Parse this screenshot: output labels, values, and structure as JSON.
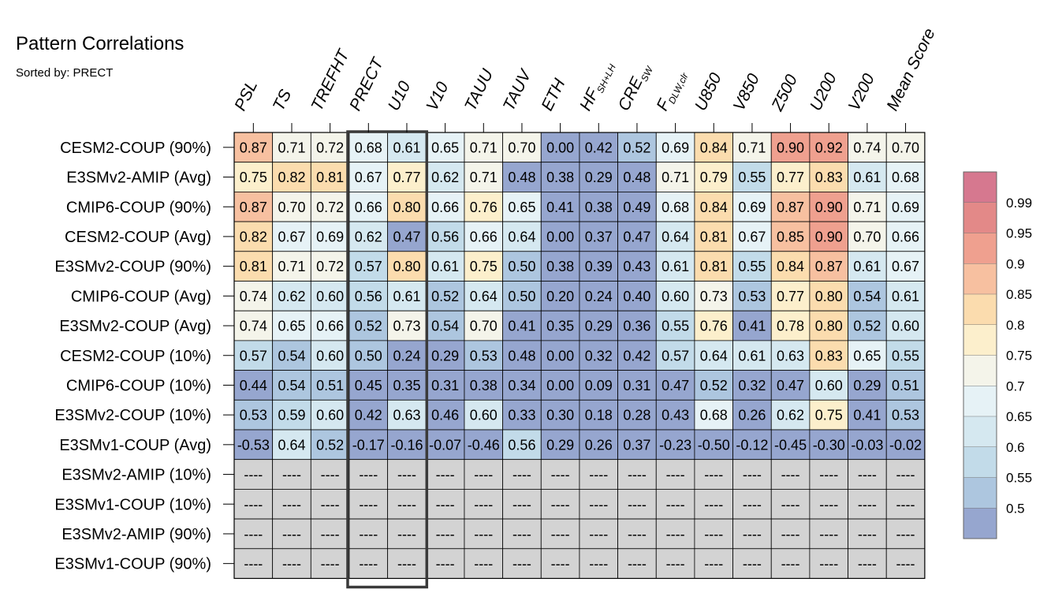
{
  "chart_data": {
    "type": "heatmap",
    "title": "Pattern Correlations",
    "subtitle": "Sorted by: PRECT",
    "highlighted_column": "PRECT",
    "missing_text": "----",
    "columns": [
      {
        "label": "PSL",
        "sub": ""
      },
      {
        "label": "TS",
        "sub": ""
      },
      {
        "label": "TREFHT",
        "sub": ""
      },
      {
        "label": "PRECT",
        "sub": ""
      },
      {
        "label": "U10",
        "sub": ""
      },
      {
        "label": "V10",
        "sub": ""
      },
      {
        "label": "TAUU",
        "sub": ""
      },
      {
        "label": "TAUV",
        "sub": ""
      },
      {
        "label": "ETH",
        "sub": ""
      },
      {
        "label": "HF",
        "sub": "SH+LH"
      },
      {
        "label": "CRE",
        "sub": "SW"
      },
      {
        "label": "F",
        "sub": "DLW,clr"
      },
      {
        "label": "U850",
        "sub": ""
      },
      {
        "label": "V850",
        "sub": ""
      },
      {
        "label": "Z500",
        "sub": ""
      },
      {
        "label": "U200",
        "sub": ""
      },
      {
        "label": "V200",
        "sub": ""
      },
      {
        "label": "Mean Score",
        "sub": ""
      }
    ],
    "rows": [
      {
        "label": "CESM2-COUP (90%)",
        "values": [
          0.87,
          0.71,
          0.72,
          0.68,
          0.61,
          0.65,
          0.71,
          0.7,
          0.0,
          0.42,
          0.52,
          0.69,
          0.84,
          0.71,
          0.9,
          0.92,
          0.74,
          0.7
        ]
      },
      {
        "label": "E3SMv2-AMIP (Avg)",
        "values": [
          0.75,
          0.82,
          0.81,
          0.67,
          0.77,
          0.62,
          0.71,
          0.48,
          0.38,
          0.29,
          0.48,
          0.71,
          0.79,
          0.55,
          0.77,
          0.83,
          0.61,
          0.68
        ]
      },
      {
        "label": "CMIP6-COUP (90%)",
        "values": [
          0.87,
          0.7,
          0.72,
          0.66,
          0.8,
          0.66,
          0.76,
          0.65,
          0.41,
          0.38,
          0.49,
          0.68,
          0.84,
          0.69,
          0.87,
          0.9,
          0.71,
          0.69
        ]
      },
      {
        "label": "CESM2-COUP (Avg)",
        "values": [
          0.82,
          0.67,
          0.69,
          0.62,
          0.47,
          0.56,
          0.66,
          0.64,
          0.0,
          0.37,
          0.47,
          0.64,
          0.81,
          0.67,
          0.85,
          0.9,
          0.7,
          0.66
        ]
      },
      {
        "label": "E3SMv2-COUP (90%)",
        "values": [
          0.81,
          0.71,
          0.72,
          0.57,
          0.8,
          0.61,
          0.75,
          0.5,
          0.38,
          0.39,
          0.43,
          0.61,
          0.81,
          0.55,
          0.84,
          0.87,
          0.61,
          0.67
        ]
      },
      {
        "label": "CMIP6-COUP (Avg)",
        "values": [
          0.74,
          0.62,
          0.6,
          0.56,
          0.61,
          0.52,
          0.64,
          0.5,
          0.2,
          0.24,
          0.4,
          0.6,
          0.73,
          0.53,
          0.77,
          0.8,
          0.54,
          0.61
        ]
      },
      {
        "label": "E3SMv2-COUP (Avg)",
        "values": [
          0.74,
          0.65,
          0.66,
          0.52,
          0.73,
          0.54,
          0.7,
          0.41,
          0.35,
          0.29,
          0.36,
          0.55,
          0.76,
          0.41,
          0.78,
          0.8,
          0.52,
          0.6
        ]
      },
      {
        "label": "CESM2-COUP (10%)",
        "values": [
          0.57,
          0.54,
          0.6,
          0.5,
          0.24,
          0.29,
          0.53,
          0.48,
          0.0,
          0.32,
          0.42,
          0.57,
          0.64,
          0.61,
          0.63,
          0.83,
          0.65,
          0.55
        ]
      },
      {
        "label": "CMIP6-COUP (10%)",
        "values": [
          0.44,
          0.54,
          0.51,
          0.45,
          0.35,
          0.31,
          0.38,
          0.34,
          0.0,
          0.09,
          0.31,
          0.47,
          0.52,
          0.32,
          0.47,
          0.6,
          0.29,
          0.51
        ]
      },
      {
        "label": "E3SMv2-COUP (10%)",
        "values": [
          0.53,
          0.59,
          0.6,
          0.42,
          0.63,
          0.46,
          0.6,
          0.33,
          0.3,
          0.18,
          0.28,
          0.43,
          0.68,
          0.26,
          0.62,
          0.75,
          0.41,
          0.53
        ]
      },
      {
        "label": "E3SMv1-COUP (Avg)",
        "values": [
          -0.53,
          0.64,
          0.52,
          -0.17,
          -0.16,
          -0.07,
          -0.46,
          0.56,
          0.29,
          0.26,
          0.37,
          -0.23,
          -0.5,
          -0.12,
          -0.45,
          -0.3,
          -0.03,
          -0.02
        ]
      },
      {
        "label": "E3SMv2-AMIP (10%)",
        "values": null
      },
      {
        "label": "E3SMv1-COUP (10%)",
        "values": null
      },
      {
        "label": "E3SMv2-AMIP (90%)",
        "values": null
      },
      {
        "label": "E3SMv1-COUP (90%)",
        "values": null
      }
    ],
    "colorbar": {
      "ticks": [
        "0.99",
        "0.95",
        "0.9",
        "0.85",
        "0.8",
        "0.75",
        "0.7",
        "0.65",
        "0.6",
        "0.55",
        "0.5"
      ],
      "levels": [
        0.5,
        0.55,
        0.6,
        0.65,
        0.7,
        0.75,
        0.8,
        0.85,
        0.9,
        0.95,
        0.99
      ],
      "colors": [
        "#96a6cf",
        "#adc6df",
        "#c2dbe9",
        "#d5e8f0",
        "#e6f2f6",
        "#f4f4ea",
        "#fcefcc",
        "#fbdcae",
        "#f7c0a0",
        "#efa08f",
        "#e38988",
        "#d6788f"
      ]
    }
  }
}
